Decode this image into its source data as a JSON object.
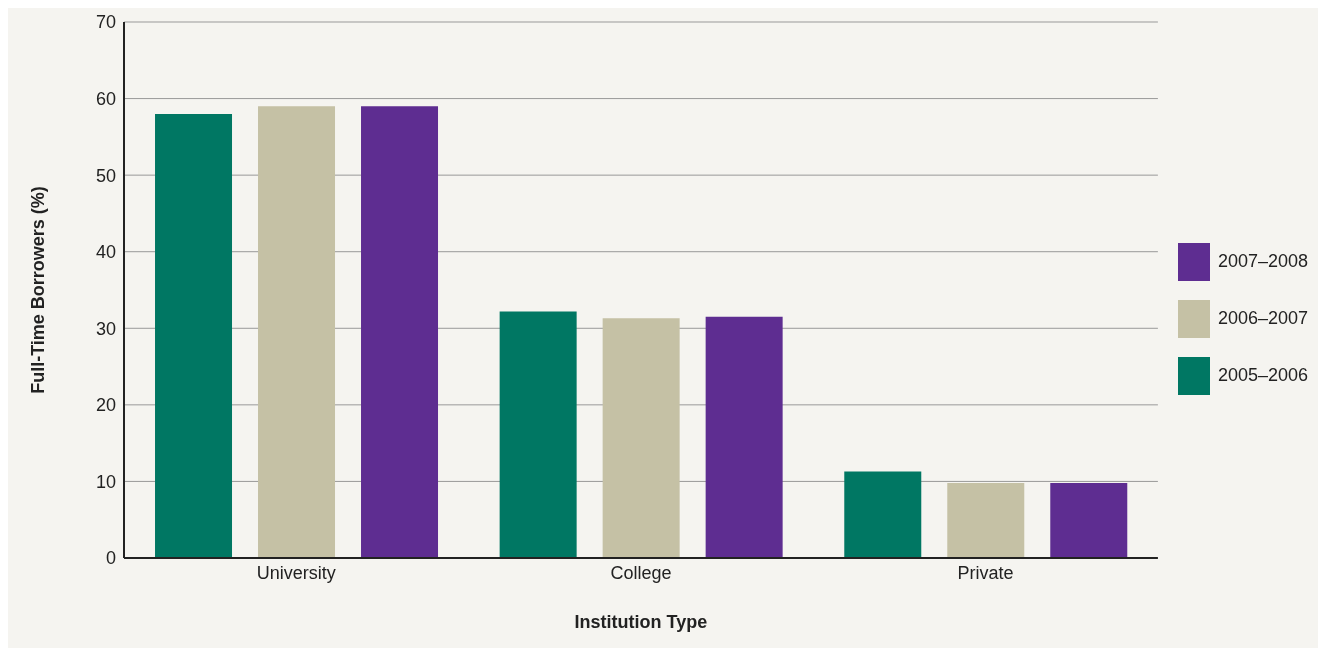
{
  "chart_data": {
    "type": "bar",
    "xlabel": "Institution Type",
    "ylabel": "Full-Time Borrowers (%)",
    "categories": [
      "University",
      "College",
      "Private"
    ],
    "series": [
      {
        "name": "2005–2006",
        "color": "#007763",
        "values": [
          58,
          32.2,
          11.3
        ]
      },
      {
        "name": "2006–2007",
        "color": "#c5c1a5",
        "values": [
          59,
          31.3,
          9.8
        ]
      },
      {
        "name": "2007–2008",
        "color": "#5e2d91",
        "values": [
          59,
          31.5,
          9.8
        ]
      }
    ],
    "ylim": [
      0,
      70
    ],
    "yticks": [
      0,
      10,
      20,
      30,
      40,
      50,
      60,
      70
    ],
    "grid": "y",
    "legend": "right"
  }
}
